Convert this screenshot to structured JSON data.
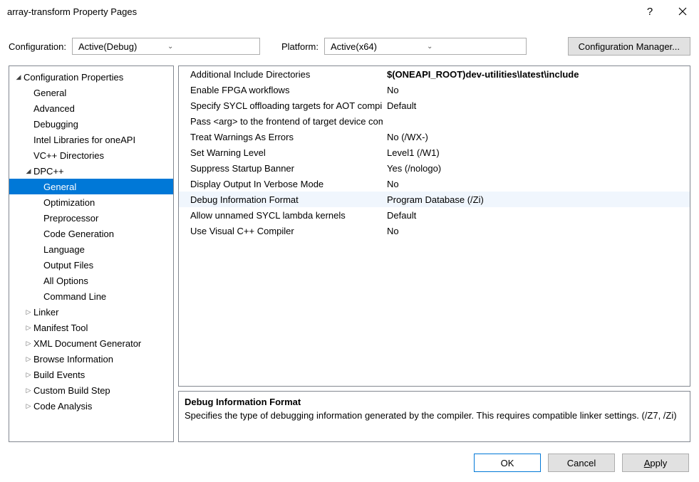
{
  "window": {
    "title": "array-transform Property Pages"
  },
  "toolbar": {
    "config_label": "Configuration:",
    "config_value": "Active(Debug)",
    "platform_label": "Platform:",
    "platform_value": "Active(x64)",
    "config_manager_label": "Configuration Manager..."
  },
  "tree": {
    "root_label": "Configuration Properties",
    "items": [
      {
        "label": "General",
        "indent": 1
      },
      {
        "label": "Advanced",
        "indent": 1
      },
      {
        "label": "Debugging",
        "indent": 1
      },
      {
        "label": "Intel Libraries for oneAPI",
        "indent": 1
      },
      {
        "label": "VC++ Directories",
        "indent": 1
      },
      {
        "label": "DPC++",
        "indent": 1,
        "expander": "open"
      },
      {
        "label": "General",
        "indent": 2,
        "selected": true
      },
      {
        "label": "Optimization",
        "indent": 2
      },
      {
        "label": "Preprocessor",
        "indent": 2
      },
      {
        "label": "Code Generation",
        "indent": 2
      },
      {
        "label": "Language",
        "indent": 2
      },
      {
        "label": "Output Files",
        "indent": 2
      },
      {
        "label": "All Options",
        "indent": 2
      },
      {
        "label": "Command Line",
        "indent": 2
      },
      {
        "label": "Linker",
        "indent": 1,
        "expander": "closed"
      },
      {
        "label": "Manifest Tool",
        "indent": 1,
        "expander": "closed"
      },
      {
        "label": "XML Document Generator",
        "indent": 1,
        "expander": "closed"
      },
      {
        "label": "Browse Information",
        "indent": 1,
        "expander": "closed"
      },
      {
        "label": "Build Events",
        "indent": 1,
        "expander": "closed"
      },
      {
        "label": "Custom Build Step",
        "indent": 1,
        "expander": "closed"
      },
      {
        "label": "Code Analysis",
        "indent": 1,
        "expander": "closed"
      }
    ]
  },
  "properties": {
    "rows": [
      {
        "name": "Additional Include Directories",
        "value": "$(ONEAPI_ROOT)dev-utilities\\latest\\include",
        "bold": true
      },
      {
        "name": "Enable FPGA workflows",
        "value": "No"
      },
      {
        "name": "Specify SYCL offloading targets for AOT compilation",
        "value": "Default"
      },
      {
        "name": "Pass <arg> to the frontend of target device compiler",
        "value": ""
      },
      {
        "name": "Treat Warnings As Errors",
        "value": "No (/WX-)"
      },
      {
        "name": "Set Warning Level",
        "value": "Level1 (/W1)"
      },
      {
        "name": "Suppress Startup Banner",
        "value": "Yes (/nologo)"
      },
      {
        "name": "Display Output In Verbose Mode",
        "value": "No"
      },
      {
        "name": "Debug Information Format",
        "value": "Program Database (/Zi)",
        "selected": true
      },
      {
        "name": "Allow unnamed SYCL lambda kernels",
        "value": "Default"
      },
      {
        "name": "Use Visual C++ Compiler",
        "value": "No"
      }
    ]
  },
  "description": {
    "title": "Debug Information Format",
    "text": "Specifies the type of debugging information generated by the compiler.  This requires compatible linker settings.    (/Z7, /Zi)"
  },
  "footer": {
    "ok": "OK",
    "cancel": "Cancel",
    "apply": "Apply"
  },
  "colors": {
    "selection_bg": "#0078d7",
    "border": "#828790",
    "button_bg": "#e1e1e1",
    "row_highlight": "#f0f6fd"
  }
}
